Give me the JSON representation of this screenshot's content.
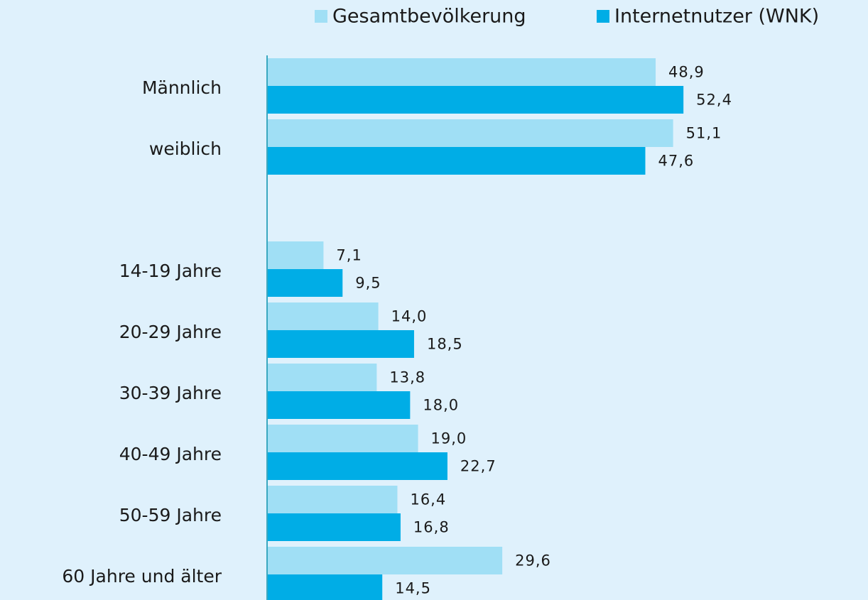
{
  "chart_data": {
    "type": "hbar",
    "categories": [
      "Männlich",
      "weiblich",
      null,
      "14-19 Jahre",
      "20-29 Jahre",
      "30-39 Jahre",
      "40-49 Jahre",
      "50-59 Jahre",
      "60 Jahre und älter"
    ],
    "series": [
      {
        "name": "Gesamtbevölkerung",
        "color": "#a0dff5",
        "values": [
          48.9,
          51.1,
          null,
          7.1,
          14.0,
          13.8,
          19.0,
          16.4,
          29.6
        ],
        "value_labels": [
          "48,9",
          "51,1",
          null,
          "7,1",
          "14,0",
          "13,8",
          "19,0",
          "16,4",
          "29,6"
        ]
      },
      {
        "name": "Internetnutzer (WNK)",
        "color": "#00ade6",
        "values": [
          52.4,
          47.6,
          null,
          9.5,
          18.5,
          18.0,
          22.7,
          16.8,
          14.5
        ],
        "value_labels": [
          "52,4",
          "47,6",
          null,
          "9,5",
          "18,5",
          "18,0",
          "22,7",
          "16,8",
          "14,5"
        ]
      }
    ],
    "xlim": [
      0,
      75
    ],
    "legend": "top-right"
  }
}
